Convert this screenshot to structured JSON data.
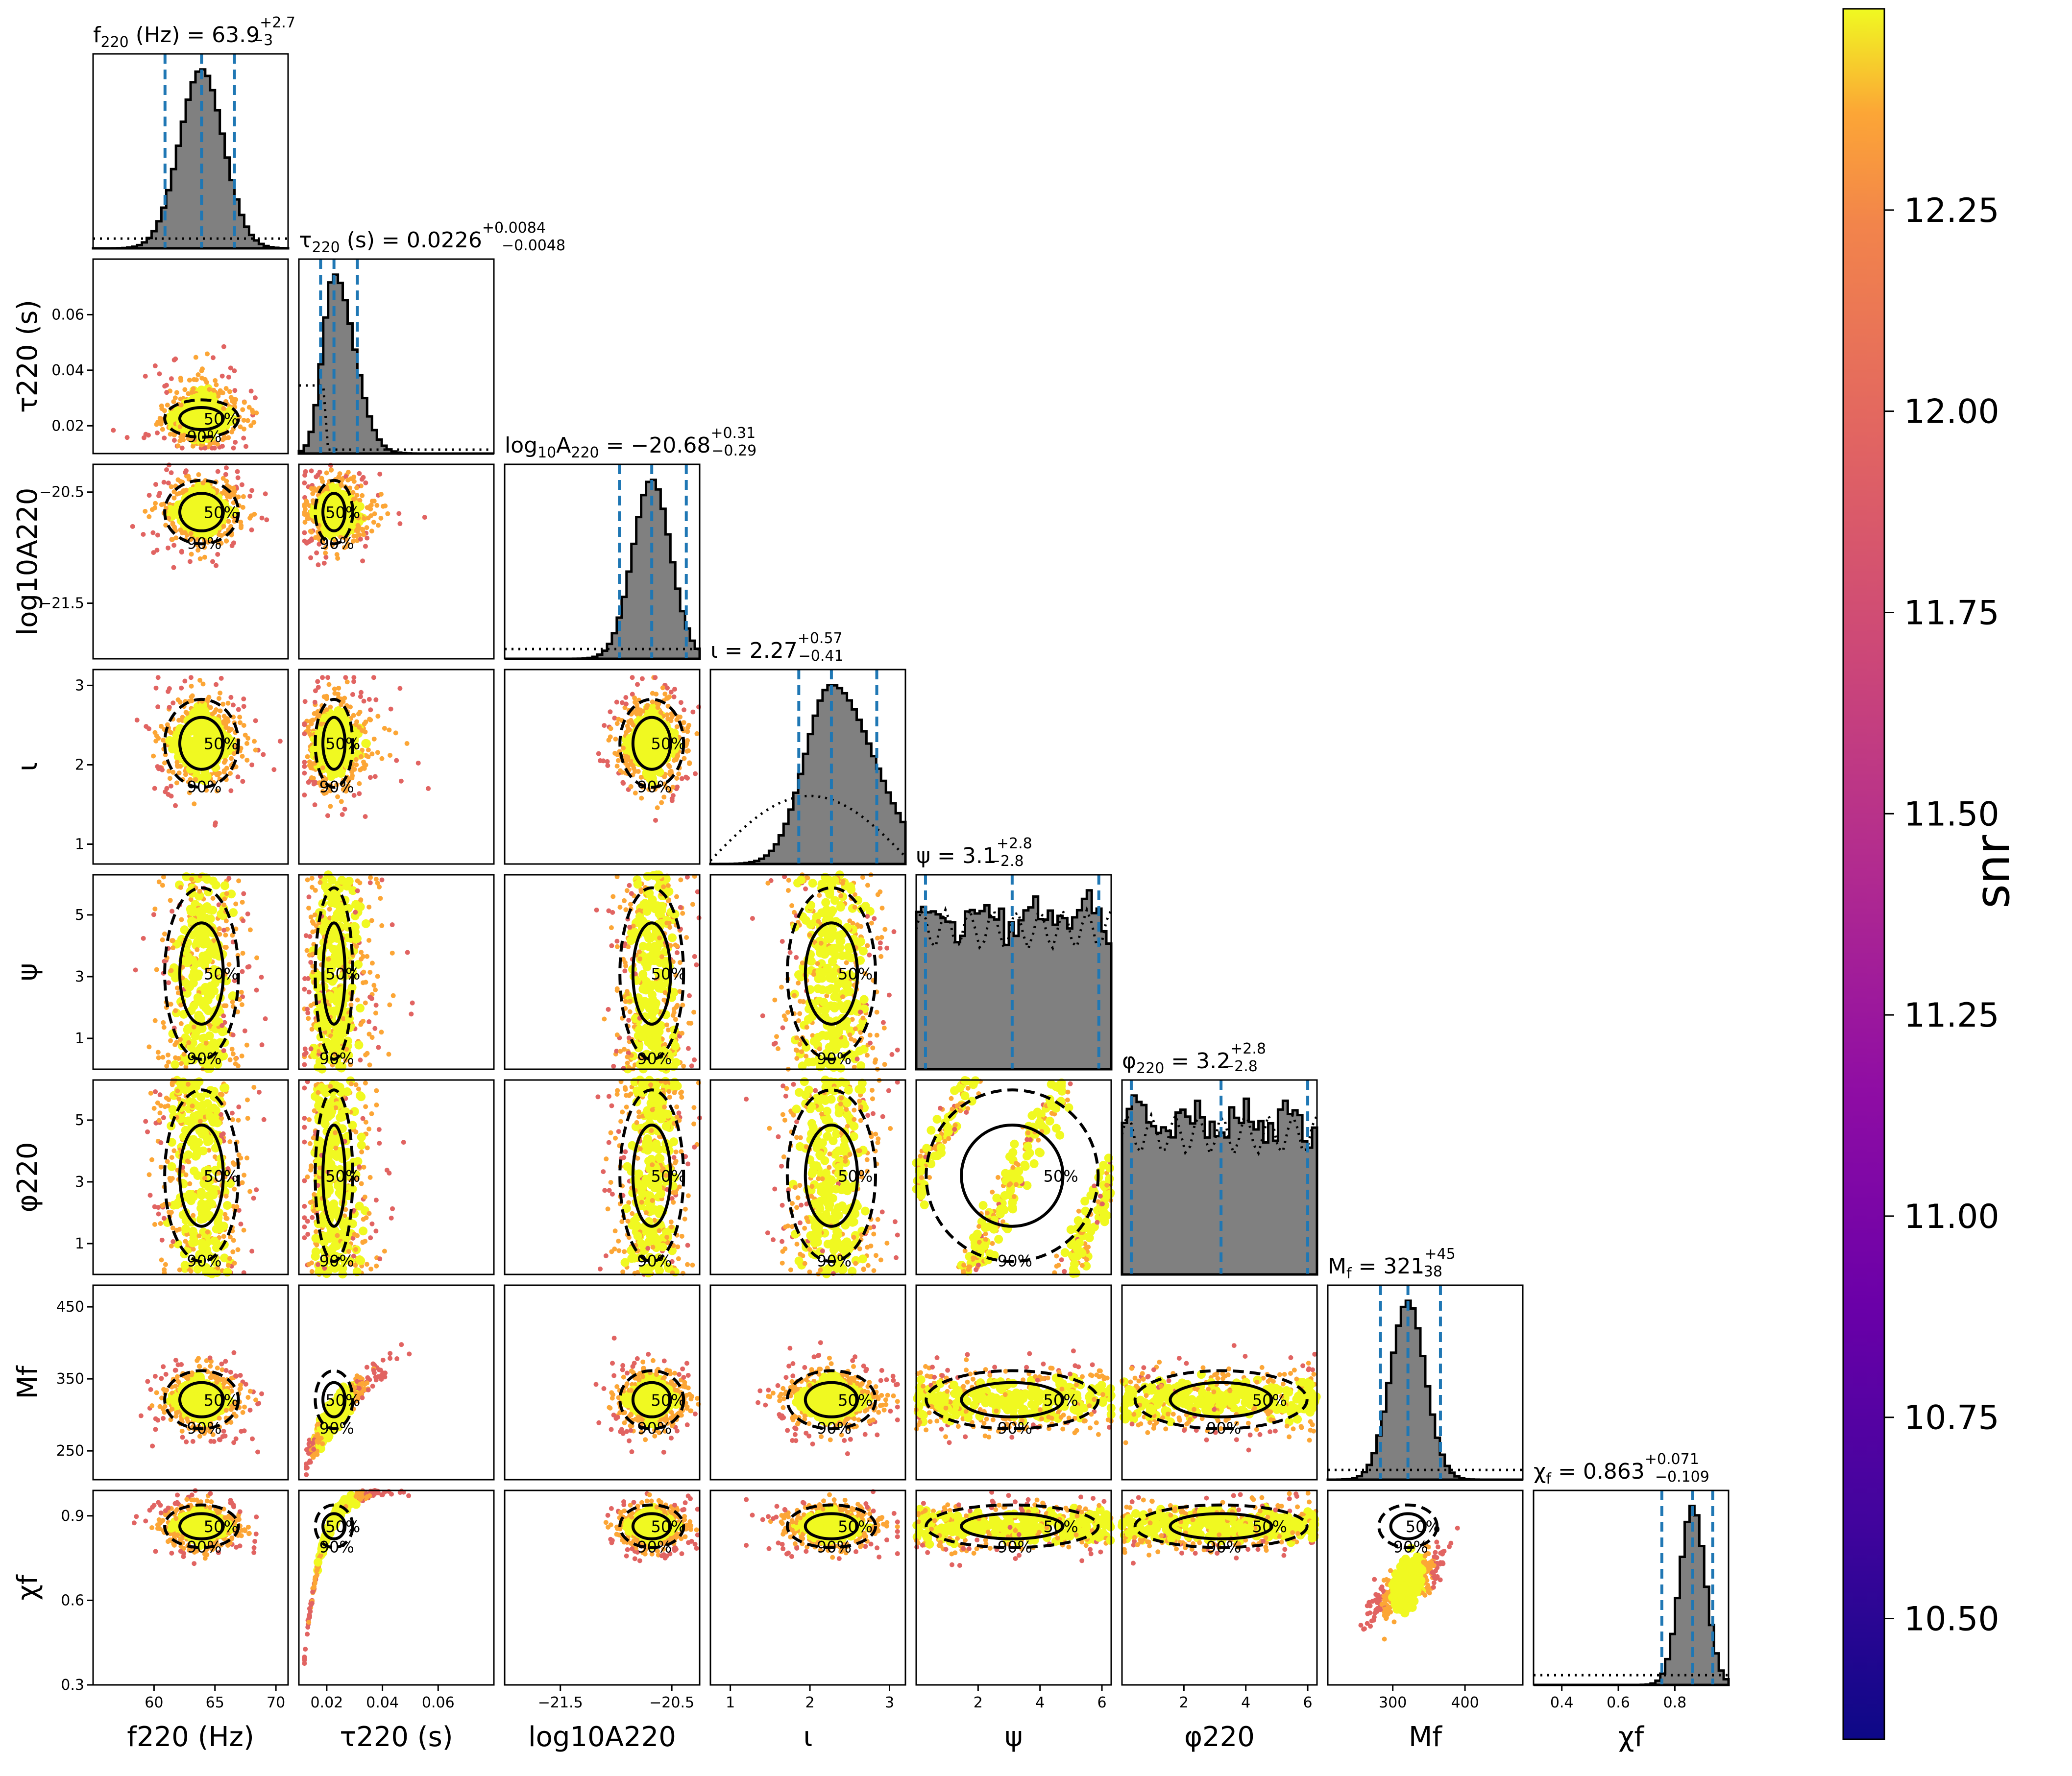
{
  "chart_data": {
    "type": "scatter",
    "plot_kind": "corner plot of posterior samples with 1D marginal histograms",
    "params": [
      {
        "key": "f220",
        "label": "f220 (Hz)",
        "title": "f220 (Hz) = 63.9 +2.7 −3",
        "title_main": "f",
        "title_sub": "220",
        "title_unit": " (Hz) = ",
        "median": "63.9",
        "plus": "+2.7",
        "minus": "−3",
        "range": [
          55,
          71
        ],
        "ticks": [
          60,
          65,
          70
        ],
        "tick_labels": [
          "60",
          "65",
          "70"
        ],
        "center": 63.9,
        "sigma": 1.8,
        "q_lo": 60.9,
        "q_mid": 63.9,
        "q_hi": 66.6,
        "prior": "flat"
      },
      {
        "key": "tau220",
        "label": "τ220 (s)",
        "title": "τ220 (s) = 0.0226 +0.0084 −0.0048",
        "title_main": "τ",
        "title_sub": "220",
        "title_unit": " (s) = ",
        "median": "0.0226",
        "plus": "+0.0084",
        "minus": "−0.0048",
        "range": [
          0.01,
          0.08
        ],
        "ticks": [
          0.02,
          0.04,
          0.06
        ],
        "tick_labels": [
          "0.02",
          "0.04",
          "0.06"
        ],
        "center": 0.0226,
        "sigma": 0.004,
        "q_lo": 0.0178,
        "q_mid": 0.0226,
        "q_hi": 0.031,
        "prior": "bump"
      },
      {
        "key": "log10A220",
        "label": "log10A220",
        "title": "log10A220 = −20.68 +0.31 −0.29",
        "title_main": "log",
        "title_sub": "10",
        "title_unit": "A",
        "title_sub2": "220",
        "title_tail": " = ",
        "median": "−20.68",
        "plus": "+0.31",
        "minus": "−0.29",
        "range": [
          -22.0,
          -20.25
        ],
        "ticks": [
          -21.5,
          -20.5
        ],
        "tick_labels": [
          "−21.5",
          "−20.5"
        ],
        "center": -20.68,
        "sigma": 0.17,
        "q_lo": -20.97,
        "q_mid": -20.68,
        "q_hi": -20.37,
        "prior": "flat"
      },
      {
        "key": "iota",
        "label": "ι",
        "title": "ι = 2.27 +0.57 −0.41",
        "title_main": "ι",
        "title_unit": " = ",
        "median": "2.27",
        "plus": "+0.57",
        "minus": "−0.41",
        "range": [
          0.75,
          3.2
        ],
        "ticks": [
          1,
          2,
          3
        ],
        "tick_labels": [
          "1",
          "2",
          "3"
        ],
        "center": 2.27,
        "sigma": 0.33,
        "q_lo": 1.86,
        "q_mid": 2.27,
        "q_hi": 2.84,
        "prior": "sine"
      },
      {
        "key": "psi",
        "label": "ψ",
        "title": "ψ = 3.1 +2.8 −2.8",
        "title_main": "ψ",
        "title_unit": " = ",
        "median": "3.1",
        "plus": "+2.8",
        "minus": "−2.8",
        "range": [
          0,
          6.3
        ],
        "ticks": [
          1,
          3,
          5
        ],
        "tick_labels": [
          "1",
          "3",
          "5"
        ],
        "x_ticks": [
          2,
          4,
          6
        ],
        "x_tick_labels": [
          "2",
          "4",
          "6"
        ],
        "center": 3.1,
        "sigma": 9,
        "q_lo": 0.3,
        "q_mid": 3.1,
        "q_hi": 5.9,
        "prior": "uniform"
      },
      {
        "key": "phi220",
        "label": "φ220",
        "title": "φ220 = 3.2 +2.8 −2.8",
        "title_main": "φ",
        "title_sub": "220",
        "title_unit": " = ",
        "median": "3.2",
        "plus": "+2.8",
        "minus": "−2.8",
        "range": [
          0,
          6.3
        ],
        "ticks": [
          1,
          3,
          5
        ],
        "tick_labels": [
          "1",
          "3",
          "5"
        ],
        "x_ticks": [
          2,
          4,
          6
        ],
        "x_tick_labels": [
          "2",
          "4",
          "6"
        ],
        "center": 3.2,
        "sigma": 9,
        "q_lo": 0.3,
        "q_mid": 3.2,
        "q_hi": 6.0,
        "prior": "uniform"
      },
      {
        "key": "Mf",
        "label": "Mf",
        "title": "Mf = 321 +45 −38",
        "title_main": "M",
        "title_sub": "f",
        "title_unit": " = ",
        "median": "321",
        "plus": "+45",
        "minus": "−38",
        "range": [
          210,
          480
        ],
        "ticks": [
          250,
          350,
          450
        ],
        "tick_labels": [
          "250",
          "350",
          "450"
        ],
        "x_ticks": [
          300,
          400
        ],
        "x_tick_labels": [
          "300",
          "400"
        ],
        "center": 321,
        "sigma": 24,
        "q_lo": 283,
        "q_mid": 321,
        "q_hi": 366,
        "prior": "flat"
      },
      {
        "key": "chif",
        "label": "χf",
        "title": "χf = 0.863 +0.071 −0.109",
        "title_main": "χ",
        "title_sub": "f",
        "title_unit": " = ",
        "median": "0.863",
        "plus": "+0.071",
        "minus": "−0.109",
        "range": [
          0.3,
          0.99
        ],
        "ticks": [
          0.3,
          0.6,
          0.9
        ],
        "tick_labels": [
          "0.3",
          "0.6",
          "0.9"
        ],
        "x_ticks": [
          0.4,
          0.6,
          0.8
        ],
        "x_tick_labels": [
          "0.4",
          "0.6",
          "0.8"
        ],
        "center": 0.863,
        "sigma": 0.045,
        "q_lo": 0.754,
        "q_mid": 0.863,
        "q_hi": 0.934,
        "prior": "flat"
      }
    ],
    "contour_labels": [
      "50%",
      "90%"
    ],
    "colorbar": {
      "label": "snr",
      "cmap": "plasma",
      "range": [
        10.35,
        12.5
      ],
      "ticks": [
        10.5,
        10.75,
        11.0,
        11.25,
        11.5,
        11.75,
        12.0,
        12.25
      ],
      "tick_labels": [
        "10.50",
        "10.75",
        "11.00",
        "11.25",
        "11.50",
        "11.75",
        "12.00",
        "12.25"
      ]
    },
    "colors": {
      "histogram_fill": "#808080",
      "quantile_line": "#1f77b4",
      "contour": "#000000",
      "scatter_hot": "#f0f921",
      "scatter_mid": "#fca636",
      "scatter_cool": "#e16462"
    }
  }
}
